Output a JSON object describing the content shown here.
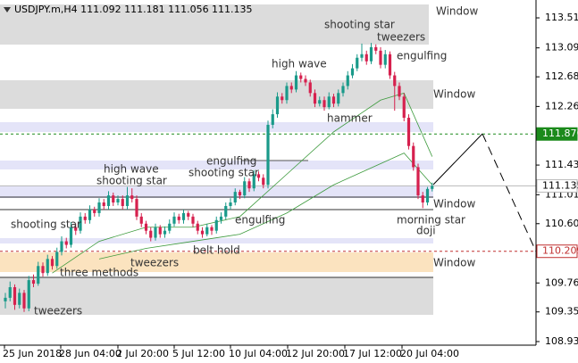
{
  "chart_data": {
    "type": "candlestick",
    "title": "USDJPY.m,H4  111.092 111.181 111.056 111.135",
    "ylim": [
      108.879,
      113.768
    ],
    "yticks": [
      {
        "value": 113.515,
        "label": "113.515"
      },
      {
        "value": 113.09,
        "label": "113.090"
      },
      {
        "value": 112.68,
        "label": "112.680"
      },
      {
        "value": 112.26,
        "label": "112.260"
      },
      {
        "value": 111.43,
        "label": "111.430"
      },
      {
        "value": 111.01,
        "label": "111.010"
      },
      {
        "value": 110.6,
        "label": "110.600"
      },
      {
        "value": 109.76,
        "label": "109.760"
      },
      {
        "value": 109.35,
        "label": "109.350"
      },
      {
        "value": 108.93,
        "label": "108.930"
      }
    ],
    "categories": [
      "25 Jun 2018",
      "28 Jun 04:00",
      "2 Jul 20:00",
      "5 Jul 12:00",
      "10 Jul 04:00",
      "12 Jul 20:00",
      "17 Jul 12:00",
      "20 Jul 04:00"
    ],
    "up_color": "#1a9a8a",
    "down_color": "#d6204e",
    "candles": [
      [
        109.5,
        109.62,
        109.4,
        109.55
      ],
      [
        109.55,
        109.78,
        109.5,
        109.7
      ],
      [
        109.7,
        109.74,
        109.38,
        109.45
      ],
      [
        109.45,
        109.68,
        109.4,
        109.62
      ],
      [
        109.62,
        109.66,
        109.35,
        109.4
      ],
      [
        109.4,
        109.86,
        109.36,
        109.8
      ],
      [
        109.8,
        109.88,
        109.7,
        109.75
      ],
      [
        109.75,
        110.06,
        109.72,
        110.0
      ],
      [
        110.0,
        110.05,
        109.85,
        109.9
      ],
      [
        109.9,
        110.16,
        109.86,
        110.1
      ],
      [
        110.1,
        110.14,
        109.95,
        110.0
      ],
      [
        110.0,
        110.26,
        109.96,
        110.2
      ],
      [
        110.2,
        110.42,
        110.15,
        110.35
      ],
      [
        110.35,
        110.4,
        110.25,
        110.3
      ],
      [
        110.3,
        110.62,
        110.26,
        110.55
      ],
      [
        110.55,
        110.6,
        110.44,
        110.5
      ],
      [
        110.5,
        110.76,
        110.46,
        110.7
      ],
      [
        110.7,
        110.75,
        110.6,
        110.65
      ],
      [
        110.65,
        110.86,
        110.6,
        110.8
      ],
      [
        110.8,
        110.84,
        110.7,
        110.75
      ],
      [
        110.75,
        110.96,
        110.7,
        110.9
      ],
      [
        110.9,
        110.95,
        110.8,
        110.85
      ],
      [
        110.85,
        111.06,
        110.8,
        111.0
      ],
      [
        111.0,
        111.04,
        110.85,
        110.9
      ],
      [
        110.9,
        111.0,
        110.86,
        110.95
      ],
      [
        110.95,
        111.0,
        110.8,
        110.85
      ],
      [
        110.85,
        111.12,
        110.8,
        111.0
      ],
      [
        111.0,
        111.1,
        110.9,
        110.95
      ],
      [
        110.95,
        111.0,
        110.65,
        110.7
      ],
      [
        110.7,
        110.75,
        110.55,
        110.6
      ],
      [
        110.6,
        110.64,
        110.45,
        110.5
      ],
      [
        110.5,
        110.55,
        110.35,
        110.4
      ],
      [
        110.4,
        110.6,
        110.36,
        110.55
      ],
      [
        110.55,
        110.58,
        110.4,
        110.45
      ],
      [
        110.45,
        110.56,
        110.4,
        110.5
      ],
      [
        110.5,
        110.66,
        110.46,
        110.6
      ],
      [
        110.6,
        110.76,
        110.56,
        110.7
      ],
      [
        110.7,
        110.74,
        110.6,
        110.65
      ],
      [
        110.65,
        110.8,
        110.6,
        110.75
      ],
      [
        110.75,
        110.78,
        110.65,
        110.7
      ],
      [
        110.7,
        110.74,
        110.55,
        110.6
      ],
      [
        110.6,
        110.64,
        110.45,
        110.5
      ],
      [
        110.5,
        110.55,
        110.4,
        110.45
      ],
      [
        110.45,
        110.6,
        110.42,
        110.55
      ],
      [
        110.55,
        110.58,
        110.44,
        110.5
      ],
      [
        110.5,
        110.7,
        110.46,
        110.65
      ],
      [
        110.65,
        110.76,
        110.6,
        110.7
      ],
      [
        110.7,
        110.9,
        110.66,
        110.85
      ],
      [
        110.85,
        110.96,
        110.8,
        110.9
      ],
      [
        110.9,
        111.1,
        110.86,
        111.05
      ],
      [
        111.05,
        111.08,
        110.95,
        111.0
      ],
      [
        111.0,
        111.26,
        110.96,
        111.2
      ],
      [
        111.2,
        111.24,
        111.05,
        111.1
      ],
      [
        111.1,
        111.36,
        111.06,
        111.3
      ],
      [
        111.3,
        111.34,
        111.2,
        111.25
      ],
      [
        111.25,
        111.3,
        111.1,
        111.15
      ],
      [
        111.15,
        112.06,
        111.1,
        112.0
      ],
      [
        112.0,
        112.22,
        111.95,
        112.15
      ],
      [
        112.15,
        112.46,
        112.1,
        112.4
      ],
      [
        112.4,
        112.45,
        112.3,
        112.35
      ],
      [
        112.35,
        112.6,
        112.3,
        112.55
      ],
      [
        112.55,
        112.6,
        112.45,
        112.5
      ],
      [
        112.5,
        112.76,
        112.46,
        112.7
      ],
      [
        112.7,
        112.74,
        112.6,
        112.65
      ],
      [
        112.65,
        112.7,
        112.55,
        112.6
      ],
      [
        112.6,
        112.64,
        112.4,
        112.45
      ],
      [
        112.45,
        112.5,
        112.25,
        112.3
      ],
      [
        112.3,
        112.4,
        112.26,
        112.35
      ],
      [
        112.35,
        112.4,
        112.2,
        112.25
      ],
      [
        112.25,
        112.46,
        112.22,
        112.4
      ],
      [
        112.4,
        112.44,
        112.25,
        112.3
      ],
      [
        112.3,
        112.5,
        112.26,
        112.45
      ],
      [
        112.45,
        112.6,
        112.4,
        112.55
      ],
      [
        112.55,
        112.76,
        112.5,
        112.7
      ],
      [
        112.7,
        112.86,
        112.66,
        112.8
      ],
      [
        112.8,
        113.0,
        112.76,
        112.95
      ],
      [
        112.95,
        113.15,
        112.9,
        113.0
      ],
      [
        113.0,
        113.05,
        112.85,
        112.9
      ],
      [
        112.9,
        113.16,
        112.86,
        113.1
      ],
      [
        113.1,
        113.14,
        113.0,
        113.05
      ],
      [
        113.05,
        113.1,
        112.8,
        112.85
      ],
      [
        112.85,
        113.06,
        112.8,
        113.0
      ],
      [
        113.0,
        113.04,
        112.65,
        112.7
      ],
      [
        112.7,
        112.75,
        112.2,
        112.55
      ],
      [
        112.55,
        112.6,
        112.35,
        112.4
      ],
      [
        112.4,
        112.45,
        112.05,
        112.1
      ],
      [
        112.1,
        112.15,
        111.65,
        111.7
      ],
      [
        111.7,
        111.75,
        111.35,
        111.4
      ],
      [
        111.4,
        111.45,
        110.95,
        111.0
      ],
      [
        111.0,
        111.05,
        110.82,
        110.9
      ],
      [
        110.9,
        111.12,
        110.86,
        111.092
      ],
      [
        111.092,
        111.181,
        111.056,
        111.135
      ]
    ],
    "ma_color": "#3c9a3c",
    "ma": [
      {
        "x": [
          10,
          20,
          30,
          40,
          50,
          60,
          70,
          80,
          85,
          91
        ],
        "values": [
          109.9,
          110.35,
          110.55,
          110.55,
          110.7,
          111.3,
          111.9,
          112.35,
          112.45,
          111.55
        ]
      },
      {
        "x": [
          20,
          30,
          40,
          50,
          60,
          70,
          80,
          85,
          91
        ],
        "values": [
          110.1,
          110.25,
          110.35,
          110.45,
          110.75,
          111.15,
          111.45,
          111.6,
          111.15
        ]
      }
    ],
    "levels": [
      {
        "value": 111.87,
        "label": "111.870",
        "color": "#1b8a1b",
        "style": "dashed"
      },
      {
        "value": 110.209,
        "label": "110.209",
        "color": "#c03030",
        "style": "dashed"
      },
      {
        "value": 111.135,
        "label": "111.135",
        "color": "#b8b8b8",
        "style": "solid"
      }
    ],
    "annotations": [
      "Window",
      "Window",
      "Window",
      "Window",
      "shooting star",
      "tweezers",
      "engulfing",
      "high wave",
      "hammer",
      "high wave",
      "shooting star",
      "engulfing",
      "shooting star",
      "engulfing",
      "morning star",
      "doji",
      "shooting star",
      "belt hold",
      "tweezers",
      "three methods",
      "tweezers"
    ]
  }
}
